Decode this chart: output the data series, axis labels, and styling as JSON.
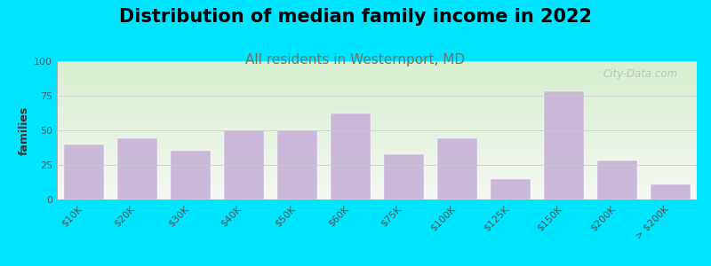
{
  "title": "Distribution of median family income in 2022",
  "subtitle": "All residents in Westernport, MD",
  "categories": [
    "$10K",
    "$20K",
    "$30K",
    "$40K",
    "$50K",
    "$60K",
    "$75K",
    "$100K",
    "$125K",
    "$150K",
    "$200K",
    "> $200K"
  ],
  "values": [
    40,
    44,
    35,
    50,
    50,
    62,
    33,
    44,
    15,
    78,
    28,
    11
  ],
  "bar_color": "#c9b8d8",
  "background_outer": "#00e5ff",
  "background_plot_top_left": "#d8efd0",
  "background_plot_bottom_right": "#f0f5ee",
  "ylabel": "families",
  "ylim": [
    0,
    100
  ],
  "yticks": [
    0,
    25,
    50,
    75,
    100
  ],
  "grid_color": "#cccccc",
  "title_fontsize": 15,
  "subtitle_fontsize": 11,
  "subtitle_color": "#667766",
  "watermark": "City-Data.com",
  "watermark_color": "#aabbaa",
  "tick_label_color": "#555555",
  "tick_label_fontsize": 8
}
